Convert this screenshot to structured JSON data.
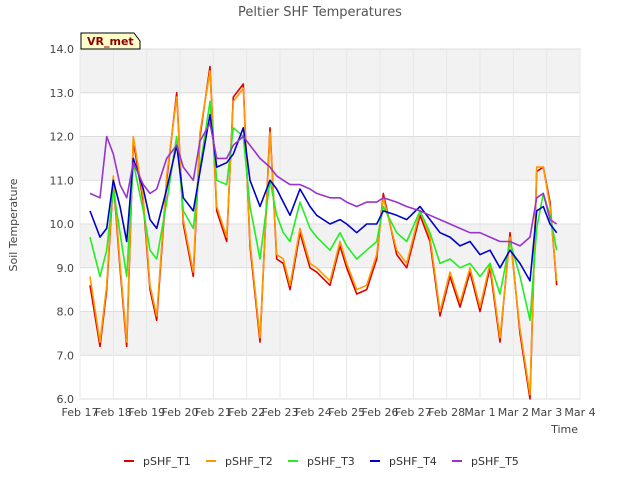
{
  "chart_data": {
    "type": "line",
    "title": "Peltier SHF Temperatures",
    "xlabel": "Time",
    "ylabel": "Soil Temperature",
    "ylim": [
      6.0,
      14.0
    ],
    "yticks": [
      "6.0",
      "7.0",
      "8.0",
      "9.0",
      "10.0",
      "11.0",
      "12.0",
      "13.0",
      "14.0"
    ],
    "xticks": [
      "Feb 17",
      "Feb 18",
      "Feb 19",
      "Feb 20",
      "Feb 21",
      "Feb 22",
      "Feb 23",
      "Feb 24",
      "Feb 25",
      "Feb 26",
      "Feb 27",
      "Feb 28",
      "Mar 1",
      "Mar 2",
      "Mar 3",
      "Mar 4"
    ],
    "xlim": [
      0,
      15
    ],
    "grid": true,
    "legend_position": "bottom",
    "badge": "VR_met",
    "x": [
      0.3,
      0.6,
      0.8,
      1.0,
      1.2,
      1.4,
      1.6,
      1.9,
      2.1,
      2.3,
      2.6,
      2.9,
      3.1,
      3.4,
      3.6,
      3.9,
      4.1,
      4.4,
      4.6,
      4.9,
      5.1,
      5.4,
      5.7,
      5.9,
      6.1,
      6.3,
      6.6,
      6.9,
      7.1,
      7.5,
      7.8,
      8.0,
      8.3,
      8.6,
      8.9,
      9.1,
      9.5,
      9.8,
      10.2,
      10.5,
      10.8,
      11.1,
      11.4,
      11.7,
      12.0,
      12.3,
      12.6,
      12.9,
      13.2,
      13.5,
      13.7,
      13.9,
      14.1,
      14.3
    ],
    "series": [
      {
        "name": "pSHF_T1",
        "color": "#dd0000",
        "values": [
          8.6,
          7.2,
          8.5,
          11.0,
          9.0,
          7.2,
          11.9,
          10.5,
          8.5,
          7.8,
          11.0,
          13.0,
          10.0,
          8.8,
          12.0,
          13.6,
          10.3,
          9.6,
          12.9,
          13.2,
          9.5,
          7.3,
          12.2,
          9.2,
          9.1,
          8.5,
          9.8,
          9.0,
          8.9,
          8.6,
          9.5,
          9.0,
          8.4,
          8.5,
          9.2,
          10.7,
          9.3,
          9.0,
          10.2,
          9.6,
          7.9,
          8.8,
          8.1,
          8.9,
          8.0,
          9.0,
          7.3,
          9.8,
          7.5,
          6.0,
          11.2,
          11.3,
          10.5,
          8.6
        ]
      },
      {
        "name": "pSHF_T2",
        "color": "#ff9900",
        "values": [
          8.8,
          7.3,
          8.6,
          11.1,
          9.1,
          7.3,
          12.0,
          10.6,
          8.6,
          7.9,
          11.1,
          12.9,
          10.1,
          8.9,
          12.1,
          13.5,
          10.4,
          9.7,
          12.8,
          13.1,
          9.6,
          7.4,
          12.1,
          9.3,
          9.2,
          8.6,
          9.9,
          9.1,
          9.0,
          8.7,
          9.6,
          9.1,
          8.5,
          8.6,
          9.3,
          10.6,
          9.4,
          9.1,
          10.3,
          9.7,
          8.0,
          8.9,
          8.2,
          9.0,
          8.1,
          9.1,
          7.4,
          9.7,
          7.6,
          6.1,
          11.3,
          11.3,
          10.4,
          8.7
        ]
      },
      {
        "name": "pSHF_T3",
        "color": "#22ee22",
        "values": [
          9.7,
          8.8,
          9.4,
          10.8,
          9.8,
          8.8,
          11.4,
          10.3,
          9.4,
          9.2,
          10.5,
          12.0,
          10.3,
          9.9,
          11.3,
          12.8,
          11.0,
          10.9,
          12.2,
          12.0,
          10.4,
          9.2,
          11.0,
          10.2,
          9.8,
          9.6,
          10.5,
          9.9,
          9.7,
          9.4,
          9.8,
          9.5,
          9.2,
          9.4,
          9.6,
          10.4,
          9.8,
          9.6,
          10.3,
          9.8,
          9.1,
          9.2,
          9.0,
          9.1,
          8.8,
          9.1,
          8.4,
          9.6,
          8.8,
          7.8,
          9.9,
          10.7,
          10.2,
          9.4
        ]
      },
      {
        "name": "pSHF_T4",
        "color": "#0000cc",
        "values": [
          10.3,
          9.7,
          9.9,
          11.0,
          10.4,
          9.6,
          11.5,
          10.8,
          10.1,
          9.9,
          10.8,
          11.8,
          10.6,
          10.3,
          11.2,
          12.5,
          11.3,
          11.4,
          11.6,
          12.2,
          11.0,
          10.4,
          11.0,
          10.8,
          10.5,
          10.2,
          10.8,
          10.4,
          10.2,
          10.0,
          10.1,
          10.0,
          9.8,
          10.0,
          10.0,
          10.3,
          10.2,
          10.1,
          10.4,
          10.1,
          9.8,
          9.7,
          9.5,
          9.6,
          9.3,
          9.4,
          9.0,
          9.4,
          9.1,
          8.7,
          10.3,
          10.4,
          10.0,
          9.8
        ]
      },
      {
        "name": "pSHF_T5",
        "color": "#9933cc",
        "values": [
          10.7,
          10.6,
          12.0,
          11.6,
          10.9,
          10.6,
          11.4,
          10.9,
          10.7,
          10.8,
          11.5,
          11.8,
          11.3,
          11.0,
          11.9,
          12.3,
          11.5,
          11.5,
          11.8,
          12.0,
          11.8,
          11.5,
          11.3,
          11.1,
          11.0,
          10.9,
          10.9,
          10.8,
          10.7,
          10.6,
          10.6,
          10.5,
          10.4,
          10.5,
          10.5,
          10.6,
          10.5,
          10.4,
          10.3,
          10.2,
          10.1,
          10.0,
          9.9,
          9.8,
          9.8,
          9.7,
          9.6,
          9.6,
          9.5,
          9.7,
          10.6,
          10.7,
          10.1,
          10.0
        ]
      }
    ]
  }
}
